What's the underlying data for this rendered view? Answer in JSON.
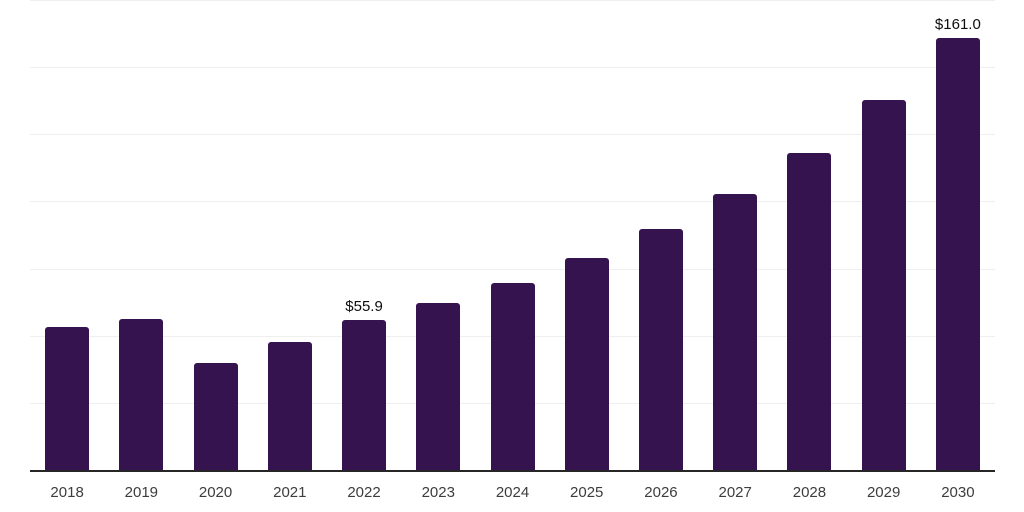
{
  "chart_data": {
    "type": "bar",
    "title": "",
    "xlabel": "",
    "ylabel": "",
    "categories": [
      "2018",
      "2019",
      "2020",
      "2021",
      "2022",
      "2023",
      "2024",
      "2025",
      "2026",
      "2027",
      "2028",
      "2029",
      "2030"
    ],
    "values": [
      53.1,
      56.3,
      39.9,
      47.8,
      55.9,
      62.3,
      69.7,
      78.9,
      89.6,
      102.7,
      118.1,
      137.6,
      161.0
    ],
    "data_labels": [
      "",
      "",
      "",
      "",
      "$55.9",
      "",
      "",
      "",
      "",
      "",
      "",
      "",
      "$161.0"
    ],
    "ylim": [
      0,
      175
    ],
    "grid_step": 25,
    "grid": true,
    "legend": false,
    "y_axis_tick_labels_visible": false
  },
  "colors": {
    "bar": "#35134e",
    "gridline": "#efefef",
    "axis_line": "#262626",
    "tick_label": "#3d3d3d",
    "value_label": "#0d0d0d",
    "background": "#ffffff"
  }
}
